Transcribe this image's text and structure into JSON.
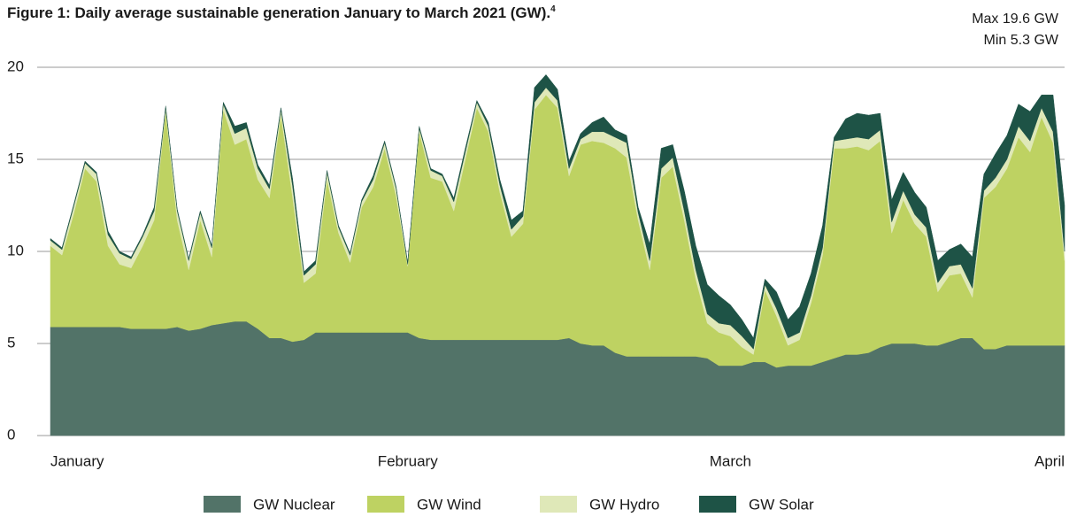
{
  "chart_data": {
    "type": "stacked_area",
    "title": "Figure 1: Daily average sustainable generation January to March 2021 (GW).",
    "title_footnote": "4",
    "annotations": [
      "Max 19.6 GW",
      "Min 5.3 GW"
    ],
    "x": [
      0,
      1,
      2,
      3,
      4,
      5,
      6,
      7,
      8,
      9,
      10,
      11,
      12,
      13,
      14,
      15,
      16,
      17,
      18,
      19,
      20,
      21,
      22,
      23,
      24,
      25,
      26,
      27,
      28,
      29,
      30,
      31,
      32,
      33,
      34,
      35,
      36,
      37,
      38,
      39,
      40,
      41,
      42,
      43,
      44,
      45,
      46,
      47,
      48,
      49,
      50,
      51,
      52,
      53,
      54,
      55,
      56,
      57,
      58,
      59,
      60,
      61,
      62,
      63,
      64,
      65,
      66,
      67,
      68,
      69,
      70,
      71,
      72,
      73,
      74,
      75,
      76,
      77,
      78,
      79,
      80,
      81,
      82,
      83,
      84,
      85,
      86,
      87,
      88
    ],
    "xlim": [
      0,
      88
    ],
    "xticks": [
      {
        "value": 0,
        "label": "January"
      },
      {
        "value": 31,
        "label": "February"
      },
      {
        "value": 59,
        "label": "March"
      },
      {
        "value": 88,
        "label": "April"
      }
    ],
    "ylim": [
      0,
      20
    ],
    "yticks": [
      0,
      5,
      10,
      15,
      20
    ],
    "grid": true,
    "legend": "bottom",
    "series": [
      {
        "name": "GW Nuclear",
        "color": "#527368",
        "values": [
          5.9,
          5.9,
          5.9,
          5.9,
          5.9,
          5.9,
          5.9,
          5.8,
          5.8,
          5.8,
          5.8,
          5.9,
          5.7,
          5.8,
          6.0,
          6.1,
          6.2,
          6.2,
          5.8,
          5.3,
          5.3,
          5.1,
          5.2,
          5.6,
          5.6,
          5.6,
          5.6,
          5.6,
          5.6,
          5.6,
          5.6,
          5.6,
          5.3,
          5.2,
          5.2,
          5.2,
          5.2,
          5.2,
          5.2,
          5.2,
          5.2,
          5.2,
          5.2,
          5.2,
          5.2,
          5.3,
          5.0,
          4.9,
          4.9,
          4.5,
          4.3,
          4.3,
          4.3,
          4.3,
          4.3,
          4.3,
          4.3,
          4.2,
          3.8,
          3.8,
          3.8,
          4.0,
          4.0,
          3.7,
          3.8,
          3.8,
          3.8,
          4.0,
          4.2,
          4.4,
          4.4,
          4.5,
          4.8,
          5.0,
          5.0,
          5.0,
          4.9,
          4.9,
          5.1,
          5.3,
          5.3,
          4.7,
          4.7,
          4.9,
          4.9,
          4.9,
          4.9,
          4.9,
          4.9
        ]
      },
      {
        "name": "GW Wind",
        "color": "#bed262",
        "values": [
          4.4,
          3.9,
          6.1,
          8.6,
          7.9,
          4.4,
          3.4,
          3.3,
          4.5,
          5.9,
          11.8,
          5.8,
          3.3,
          5.9,
          3.7,
          11.6,
          9.6,
          9.9,
          8.1,
          7.6,
          12.1,
          7.9,
          3.1,
          3.2,
          8.3,
          5.4,
          3.8,
          6.8,
          7.9,
          10,
          7.4,
          3.6,
          11.2,
          8.8,
          8.6,
          7,
          9.8,
          12.6,
          11.3,
          8,
          5.6,
          6.3,
          12.5,
          13.3,
          12.6,
          8.8,
          10.8,
          11.1,
          11,
          11.1,
          10.8,
          7.4,
          4.7,
          9.7,
          10.3,
          7.4,
          4.2,
          1.9,
          1.8,
          1.6,
          1.0,
          0.4,
          3.9,
          2.8,
          1.1,
          1.4,
          3.4,
          5.8,
          11.4,
          11.2,
          11.3,
          11,
          11.2,
          6,
          7.8,
          6.5,
          5.9,
          2.9,
          3.6,
          3.5,
          2.2,
          8.2,
          8.8,
          9.6,
          11.3,
          10.5,
          12.4,
          11,
          4.6
        ]
      },
      {
        "name": "GW Hydro",
        "color": "#dfe8b8",
        "values": [
          0.3,
          0.3,
          0.4,
          0.3,
          0.4,
          0.6,
          0.6,
          0.5,
          0.5,
          0.5,
          0.2,
          0.5,
          0.5,
          0.4,
          0.5,
          0.3,
          0.6,
          0.6,
          0.6,
          0.5,
          0.3,
          0.6,
          0.4,
          0.5,
          0.4,
          0.3,
          0.4,
          0.3,
          0.4,
          0.3,
          0.4,
          0.1,
          0.2,
          0.4,
          0.3,
          0.5,
          0.4,
          0.3,
          0.3,
          0.4,
          0.4,
          0.4,
          0.4,
          0.4,
          0.4,
          0.4,
          0.3,
          0.5,
          0.6,
          0.6,
          0.8,
          0.4,
          0.5,
          0.5,
          0.5,
          0.5,
          0.5,
          0.5,
          0.5,
          0.6,
          0.6,
          0.3,
          0.3,
          0.4,
          0.4,
          0.4,
          0.4,
          0.4,
          0.4,
          0.5,
          0.5,
          0.6,
          0.6,
          0.6,
          0.5,
          0.5,
          0.5,
          0.5,
          0.5,
          0.5,
          0.5,
          0.4,
          0.5,
          0.5,
          0.6,
          0.6,
          0.5,
          0.6,
          0.5
        ]
      },
      {
        "name": "GW Solar",
        "color": "#1e5346",
        "values": [
          0.1,
          0.1,
          0.1,
          0.1,
          0.1,
          0.2,
          0.1,
          0.1,
          0.1,
          0.2,
          0.1,
          0.1,
          0.1,
          0.1,
          0.1,
          0.1,
          0.4,
          0.3,
          0.2,
          0.2,
          0.1,
          0.4,
          0.2,
          0.2,
          0.1,
          0.1,
          0.1,
          0.1,
          0.2,
          0.1,
          0.1,
          0.1,
          0.1,
          0.1,
          0.1,
          0.2,
          0.2,
          0.1,
          0.2,
          0.3,
          0.5,
          0.3,
          0.8,
          0.7,
          0.6,
          0.4,
          0.3,
          0.5,
          0.8,
          0.4,
          0.4,
          0.3,
          0.9,
          1.1,
          0.7,
          1.1,
          1.3,
          1.6,
          1.5,
          1.1,
          0.9,
          0.6,
          0.3,
          0.9,
          1.0,
          1.4,
          1.2,
          1.2,
          0.2,
          1.1,
          1.3,
          1.3,
          0.9,
          1.2,
          1.0,
          1.2,
          1.1,
          1.2,
          0.9,
          1.1,
          1.7,
          0.9,
          1.3,
          1.3,
          1.2,
          1.6,
          0.7,
          2.0,
          2.5
        ]
      }
    ]
  }
}
